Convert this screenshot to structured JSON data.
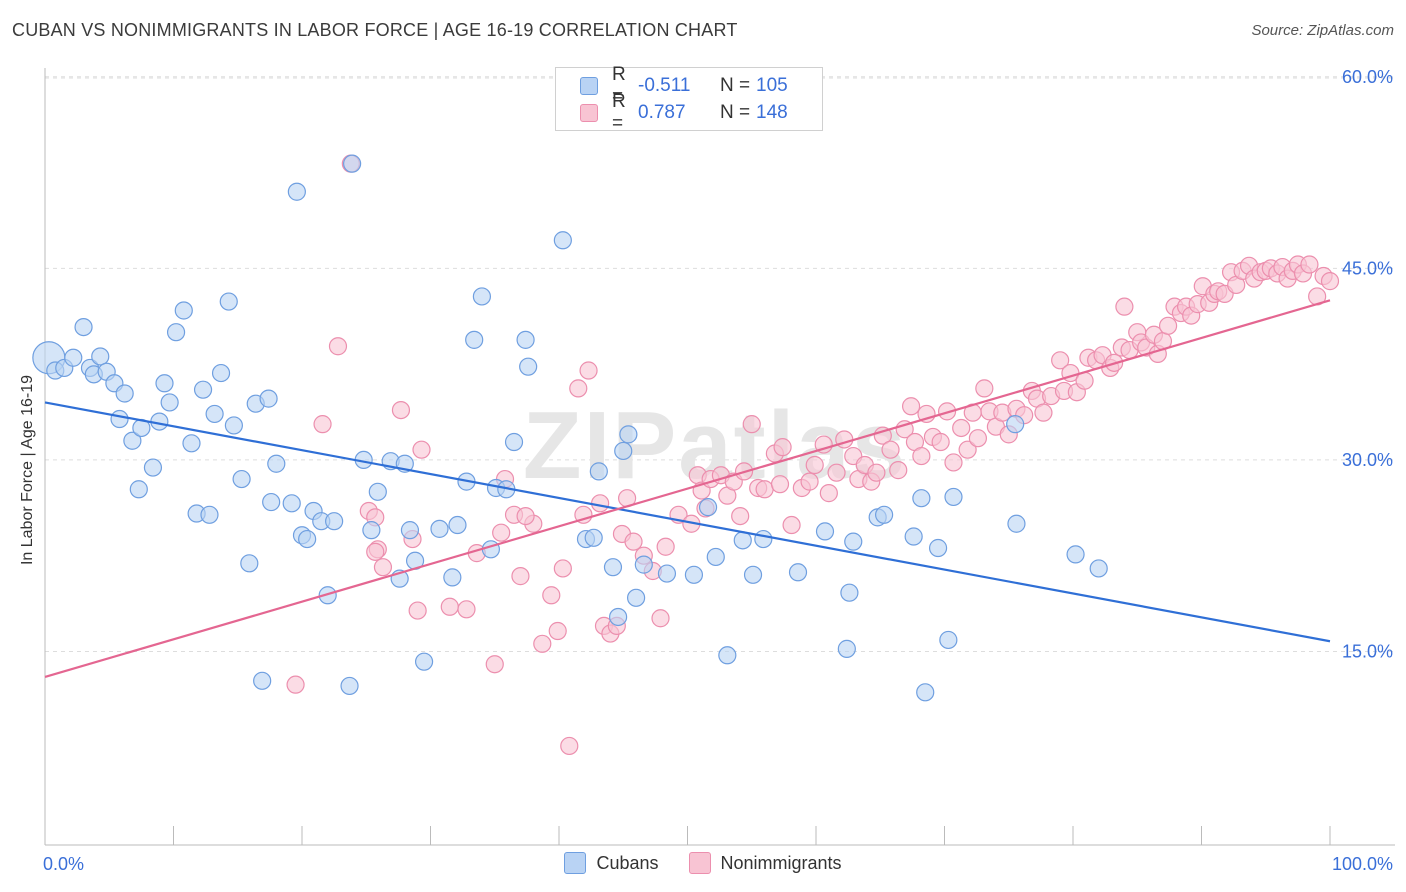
{
  "title": "CUBAN VS NONIMMIGRANTS IN LABOR FORCE | AGE 16-19 CORRELATION CHART",
  "source": "Source: ZipAtlas.com",
  "watermark": "ZIPatlas",
  "legend_top": [
    {
      "r_label": "R =",
      "r_value": "-0.511",
      "n_label": "N =",
      "n_value": "105"
    },
    {
      "r_label": "R =",
      "r_value": "0.787",
      "n_label": "N =",
      "n_value": "148"
    }
  ],
  "legend_bottom": [
    {
      "label": "Cubans"
    },
    {
      "label": "Nonimmigrants"
    }
  ],
  "colors": {
    "cubans_fill": "#b9d3f4",
    "cubans_stroke": "#6f9fe0",
    "cubans_line": "#2f6fd6",
    "nonimm_fill": "#f8c4d3",
    "nonimm_stroke": "#ec8fae",
    "nonimm_line": "#e46691",
    "axis_text": "#3a6fd8",
    "grid": "#dddddd"
  },
  "chart_data": {
    "type": "scatter",
    "title": "CUBAN VS NONIMMIGRANTS IN LABOR FORCE | AGE 16-19 CORRELATION CHART",
    "xlabel": "",
    "ylabel": "In Labor Force | Age 16-19",
    "x_ticks": [
      "0.0%",
      "100.0%"
    ],
    "y_ticks": [
      "15.0%",
      "30.0%",
      "45.0%",
      "60.0%"
    ],
    "y_tick_values": [
      15,
      30,
      45,
      60
    ],
    "xlim": [
      0,
      100
    ],
    "ylim": [
      0,
      62
    ],
    "grid": "horizontal dashed",
    "legend_placement": "top-center",
    "series": [
      {
        "name": "Cubans",
        "r": -0.511,
        "n": 105,
        "trend": {
          "x": [
            0,
            100
          ],
          "y": [
            34.5,
            15.8
          ]
        },
        "points": [
          [
            0.3,
            38.0
          ],
          [
            0.8,
            37.0
          ],
          [
            1.5,
            37.2
          ],
          [
            2.2,
            38.0
          ],
          [
            3.0,
            40.4
          ],
          [
            3.5,
            37.2
          ],
          [
            3.8,
            36.7
          ],
          [
            4.3,
            38.1
          ],
          [
            4.8,
            36.9
          ],
          [
            5.4,
            36.0
          ],
          [
            6.2,
            35.2
          ],
          [
            5.8,
            33.2
          ],
          [
            6.8,
            31.5
          ],
          [
            7.5,
            32.5
          ],
          [
            7.3,
            27.7
          ],
          [
            8.4,
            29.4
          ],
          [
            8.9,
            33.0
          ],
          [
            9.3,
            36.0
          ],
          [
            9.7,
            34.5
          ],
          [
            10.2,
            40.0
          ],
          [
            10.8,
            41.7
          ],
          [
            11.4,
            31.3
          ],
          [
            11.8,
            25.8
          ],
          [
            12.3,
            35.5
          ],
          [
            12.8,
            25.7
          ],
          [
            13.2,
            33.6
          ],
          [
            13.7,
            36.8
          ],
          [
            14.3,
            42.4
          ],
          [
            14.7,
            32.7
          ],
          [
            15.3,
            28.5
          ],
          [
            15.9,
            21.9
          ],
          [
            16.4,
            34.4
          ],
          [
            16.9,
            12.7
          ],
          [
            17.4,
            34.8
          ],
          [
            17.6,
            26.7
          ],
          [
            18.0,
            29.7
          ],
          [
            19.2,
            26.6
          ],
          [
            19.6,
            51.0
          ],
          [
            20.0,
            24.1
          ],
          [
            20.4,
            23.8
          ],
          [
            20.9,
            26.0
          ],
          [
            21.5,
            25.2
          ],
          [
            22.0,
            19.4
          ],
          [
            22.5,
            25.2
          ],
          [
            23.7,
            12.3
          ],
          [
            23.9,
            53.2
          ],
          [
            24.8,
            30.0
          ],
          [
            25.4,
            24.5
          ],
          [
            25.9,
            27.5
          ],
          [
            26.9,
            29.9
          ],
          [
            27.6,
            20.7
          ],
          [
            28.0,
            29.7
          ],
          [
            28.4,
            24.5
          ],
          [
            28.8,
            22.1
          ],
          [
            29.5,
            14.2
          ],
          [
            30.7,
            24.6
          ],
          [
            31.7,
            20.8
          ],
          [
            32.1,
            24.9
          ],
          [
            32.8,
            28.3
          ],
          [
            33.4,
            39.4
          ],
          [
            34.0,
            42.8
          ],
          [
            34.7,
            23.0
          ],
          [
            35.1,
            27.8
          ],
          [
            35.9,
            27.7
          ],
          [
            36.5,
            31.4
          ],
          [
            37.4,
            39.4
          ],
          [
            37.6,
            37.3
          ],
          [
            40.3,
            47.2
          ],
          [
            42.1,
            23.8
          ],
          [
            42.7,
            23.9
          ],
          [
            43.1,
            29.1
          ],
          [
            44.2,
            21.6
          ],
          [
            44.6,
            17.7
          ],
          [
            45.0,
            30.7
          ],
          [
            45.4,
            32.0
          ],
          [
            46.0,
            19.2
          ],
          [
            46.6,
            21.8
          ],
          [
            48.4,
            21.1
          ],
          [
            50.5,
            21.0
          ],
          [
            51.6,
            26.3
          ],
          [
            52.2,
            22.4
          ],
          [
            53.1,
            14.7
          ],
          [
            54.3,
            23.7
          ],
          [
            55.1,
            21.0
          ],
          [
            55.9,
            23.8
          ],
          [
            58.6,
            21.2
          ],
          [
            60.7,
            24.4
          ],
          [
            62.4,
            15.2
          ],
          [
            62.6,
            19.6
          ],
          [
            62.9,
            23.6
          ],
          [
            64.8,
            25.5
          ],
          [
            65.3,
            25.7
          ],
          [
            67.6,
            24.0
          ],
          [
            68.2,
            27.0
          ],
          [
            68.5,
            11.8
          ],
          [
            69.5,
            23.1
          ],
          [
            70.7,
            27.1
          ],
          [
            70.3,
            15.9
          ],
          [
            75.6,
            25.0
          ],
          [
            75.5,
            32.8
          ],
          [
            80.2,
            22.6
          ],
          [
            82.0,
            21.5
          ]
        ]
      },
      {
        "name": "Nonimmigrants",
        "r": 0.787,
        "n": 148,
        "trend": {
          "x": [
            0,
            100
          ],
          "y": [
            13.0,
            42.5
          ]
        },
        "points": [
          [
            23.8,
            53.2
          ],
          [
            22.8,
            38.9
          ],
          [
            21.6,
            32.8
          ],
          [
            19.5,
            12.4
          ],
          [
            25.2,
            26.0
          ],
          [
            25.7,
            25.5
          ],
          [
            25.9,
            23.0
          ],
          [
            26.3,
            21.6
          ],
          [
            25.7,
            22.8
          ],
          [
            27.7,
            33.9
          ],
          [
            28.6,
            23.8
          ],
          [
            29.0,
            18.2
          ],
          [
            29.3,
            30.8
          ],
          [
            31.5,
            18.5
          ],
          [
            32.8,
            18.3
          ],
          [
            33.6,
            22.7
          ],
          [
            35.0,
            14.0
          ],
          [
            35.8,
            28.5
          ],
          [
            35.5,
            24.3
          ],
          [
            37.0,
            20.9
          ],
          [
            36.5,
            25.7
          ],
          [
            38.0,
            25.0
          ],
          [
            37.4,
            25.6
          ],
          [
            38.7,
            15.6
          ],
          [
            39.4,
            19.4
          ],
          [
            39.9,
            16.6
          ],
          [
            40.3,
            21.5
          ],
          [
            40.8,
            7.6
          ],
          [
            41.5,
            35.6
          ],
          [
            41.9,
            25.7
          ],
          [
            42.3,
            37.0
          ],
          [
            43.2,
            26.6
          ],
          [
            43.5,
            17.0
          ],
          [
            44.0,
            16.4
          ],
          [
            44.5,
            17.0
          ],
          [
            45.3,
            27.0
          ],
          [
            44.9,
            24.2
          ],
          [
            45.8,
            23.6
          ],
          [
            46.6,
            22.5
          ],
          [
            47.3,
            21.3
          ],
          [
            47.9,
            17.6
          ],
          [
            48.3,
            23.2
          ],
          [
            49.3,
            25.7
          ],
          [
            50.3,
            25.0
          ],
          [
            50.8,
            28.8
          ],
          [
            51.1,
            27.6
          ],
          [
            51.4,
            26.2
          ],
          [
            51.8,
            28.5
          ],
          [
            52.6,
            28.8
          ],
          [
            53.1,
            27.2
          ],
          [
            53.6,
            28.3
          ],
          [
            54.1,
            25.6
          ],
          [
            54.4,
            29.1
          ],
          [
            55.0,
            32.8
          ],
          [
            55.5,
            27.8
          ],
          [
            56.0,
            27.7
          ],
          [
            56.8,
            30.5
          ],
          [
            57.2,
            28.1
          ],
          [
            57.4,
            31.0
          ],
          [
            58.1,
            24.9
          ],
          [
            58.9,
            27.8
          ],
          [
            59.5,
            28.3
          ],
          [
            59.9,
            29.6
          ],
          [
            60.6,
            31.2
          ],
          [
            61.0,
            27.4
          ],
          [
            61.6,
            29.0
          ],
          [
            62.2,
            31.6
          ],
          [
            62.9,
            30.3
          ],
          [
            63.3,
            28.5
          ],
          [
            63.8,
            29.6
          ],
          [
            64.3,
            28.3
          ],
          [
            64.7,
            29.0
          ],
          [
            65.2,
            31.9
          ],
          [
            65.8,
            30.8
          ],
          [
            66.4,
            29.2
          ],
          [
            66.9,
            32.4
          ],
          [
            67.4,
            34.2
          ],
          [
            67.7,
            31.4
          ],
          [
            68.2,
            30.3
          ],
          [
            68.6,
            33.6
          ],
          [
            69.1,
            31.8
          ],
          [
            69.7,
            31.4
          ],
          [
            70.2,
            33.8
          ],
          [
            70.7,
            29.8
          ],
          [
            71.3,
            32.5
          ],
          [
            71.8,
            30.8
          ],
          [
            72.2,
            33.7
          ],
          [
            72.6,
            31.7
          ],
          [
            73.1,
            35.6
          ],
          [
            73.5,
            33.8
          ],
          [
            74.0,
            32.6
          ],
          [
            74.5,
            33.7
          ],
          [
            75.0,
            32.0
          ],
          [
            75.6,
            34.0
          ],
          [
            76.2,
            33.5
          ],
          [
            76.8,
            35.4
          ],
          [
            77.2,
            34.8
          ],
          [
            77.7,
            33.7
          ],
          [
            78.3,
            35.0
          ],
          [
            79.0,
            37.8
          ],
          [
            79.3,
            35.4
          ],
          [
            79.8,
            36.8
          ],
          [
            80.3,
            35.3
          ],
          [
            80.9,
            36.2
          ],
          [
            81.2,
            38.0
          ],
          [
            81.8,
            37.8
          ],
          [
            82.3,
            38.2
          ],
          [
            82.9,
            37.2
          ],
          [
            83.2,
            37.6
          ],
          [
            83.8,
            38.8
          ],
          [
            84.0,
            42.0
          ],
          [
            84.4,
            38.6
          ],
          [
            85.0,
            40.0
          ],
          [
            85.3,
            39.2
          ],
          [
            85.7,
            38.8
          ],
          [
            86.3,
            39.8
          ],
          [
            86.6,
            38.3
          ],
          [
            87.0,
            39.3
          ],
          [
            87.4,
            40.5
          ],
          [
            87.9,
            42.0
          ],
          [
            88.4,
            41.5
          ],
          [
            88.8,
            42.0
          ],
          [
            89.2,
            41.3
          ],
          [
            89.7,
            42.2
          ],
          [
            90.1,
            43.6
          ],
          [
            90.6,
            42.3
          ],
          [
            91.0,
            43.0
          ],
          [
            91.3,
            43.2
          ],
          [
            91.8,
            43.0
          ],
          [
            92.3,
            44.7
          ],
          [
            92.7,
            43.7
          ],
          [
            93.2,
            44.8
          ],
          [
            93.7,
            45.2
          ],
          [
            94.1,
            44.2
          ],
          [
            94.6,
            44.7
          ],
          [
            95.0,
            44.8
          ],
          [
            95.4,
            45.0
          ],
          [
            95.9,
            44.6
          ],
          [
            96.3,
            45.1
          ],
          [
            96.7,
            44.2
          ],
          [
            97.1,
            44.8
          ],
          [
            97.5,
            45.3
          ],
          [
            97.9,
            44.6
          ],
          [
            98.4,
            45.3
          ],
          [
            99.0,
            42.8
          ],
          [
            99.5,
            44.4
          ],
          [
            100.0,
            44.0
          ]
        ]
      }
    ]
  }
}
